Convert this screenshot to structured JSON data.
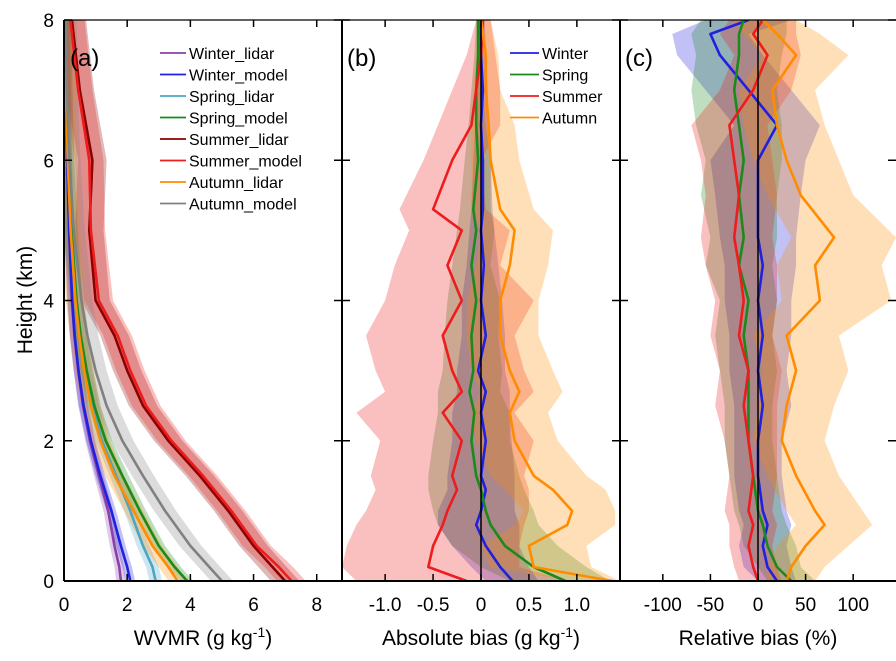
{
  "chart_data": [
    {
      "type": "line",
      "panel_label": "(a)",
      "xlabel": "WVMR (g kg",
      "xlabel_sup": "-1",
      "xlabel_tail": ")",
      "ylabel": "Height (km)",
      "xlim": [
        0,
        8.8
      ],
      "ylim": [
        0,
        8
      ],
      "xticks": [
        0,
        2,
        4,
        6,
        8
      ],
      "xtick_labels": [
        "0",
        "2",
        "4",
        "6",
        "8"
      ],
      "yticks": [
        0,
        2,
        4,
        6,
        8
      ],
      "ytick_labels": [
        "0",
        "2",
        "4",
        "6",
        "8"
      ],
      "legend_position": "top-right",
      "heights": [
        0,
        0.2,
        0.5,
        1,
        1.5,
        2,
        2.5,
        3,
        3.5,
        4,
        5,
        6,
        7,
        8
      ],
      "series": [
        {
          "name": "Winter_lidar",
          "color": "#8b3fa8",
          "x": [
            1.8,
            1.75,
            1.6,
            1.4,
            1.1,
            0.82,
            0.6,
            0.45,
            0.33,
            0.25,
            0.16,
            0.1,
            0.06,
            0.04
          ],
          "spread": 0.15
        },
        {
          "name": "Winter_model",
          "color": "#2020e0",
          "x": [
            2.1,
            2.0,
            1.8,
            1.5,
            1.15,
            0.85,
            0.62,
            0.46,
            0.34,
            0.26,
            0.16,
            0.1,
            0.06,
            0.04
          ],
          "spread": 0.15
        },
        {
          "name": "Spring_lidar",
          "color": "#4aa6c4",
          "x": [
            2.9,
            2.8,
            2.5,
            2.1,
            1.65,
            1.2,
            0.9,
            0.68,
            0.5,
            0.38,
            0.22,
            0.12,
            0.07,
            0.04
          ],
          "spread": 0.2
        },
        {
          "name": "Spring_model",
          "color": "#1a8a1a",
          "x": [
            3.9,
            3.5,
            3.0,
            2.4,
            1.85,
            1.32,
            0.96,
            0.72,
            0.53,
            0.4,
            0.23,
            0.13,
            0.07,
            0.04
          ],
          "spread": 0.2
        },
        {
          "name": "Summer_lidar",
          "color": "#8b0000",
          "x": [
            7.0,
            6.6,
            6.0,
            5.2,
            4.3,
            3.3,
            2.5,
            2.0,
            1.6,
            1.0,
            0.8,
            0.9,
            0.5,
            0.25
          ],
          "spread": 0.45
        },
        {
          "name": "Summer_model",
          "color": "#ee1c1c",
          "x": [
            7.2,
            6.8,
            6.1,
            5.3,
            4.4,
            3.4,
            2.6,
            2.1,
            1.7,
            1.1,
            0.85,
            0.8,
            0.45,
            0.2
          ],
          "spread": 0.45
        },
        {
          "name": "Autumn_lidar",
          "color": "#ff8c00",
          "x": [
            3.6,
            3.3,
            2.8,
            2.2,
            1.6,
            1.15,
            0.85,
            0.64,
            0.48,
            0.36,
            0.21,
            0.12,
            0.06,
            0.03
          ],
          "spread": 0.3
        },
        {
          "name": "Autumn_model",
          "color": "#808080",
          "x": [
            5.0,
            4.6,
            4.0,
            3.2,
            2.5,
            1.85,
            1.35,
            1.0,
            0.74,
            0.55,
            0.31,
            0.17,
            0.09,
            0.05
          ],
          "spread": 0.35
        }
      ]
    },
    {
      "type": "line",
      "panel_label": "(b)",
      "xlabel": "Absolute bias (g kg",
      "xlabel_sup": "-1",
      "xlabel_tail": ")",
      "xlim": [
        -1.45,
        1.45
      ],
      "ylim": [
        0,
        8
      ],
      "xticks": [
        -1.0,
        -0.5,
        0,
        0.5,
        1.0
      ],
      "xtick_labels": [
        "-1.0",
        "-0.5",
        "0",
        "0.5",
        "1.0"
      ],
      "zero_line": true,
      "legend_position": "top-right",
      "heights": [
        0,
        0.2,
        0.5,
        0.8,
        1,
        1.3,
        1.5,
        2,
        2.4,
        2.7,
        3,
        3.5,
        4,
        4.5,
        5,
        5.3,
        6,
        6.5,
        7,
        7.5,
        8
      ],
      "series": [
        {
          "name": "Winter",
          "color": "#2020e0",
          "x": [
            0.33,
            0.2,
            0.05,
            -0.05,
            0.0,
            0.05,
            0.0,
            0.05,
            0.0,
            0.05,
            -0.03,
            0.05,
            0.0,
            0.03,
            0.0,
            0.02,
            0.02,
            0.0,
            0.02,
            0.0,
            0.0
          ],
          "lo": [
            0.05,
            -0.1,
            -0.3,
            -0.45,
            -0.45,
            -0.35,
            -0.35,
            -0.3,
            -0.3,
            -0.25,
            -0.25,
            -0.2,
            -0.2,
            -0.15,
            -0.12,
            -0.1,
            -0.08,
            -0.06,
            -0.05,
            -0.04,
            -0.03
          ],
          "hi": [
            0.6,
            0.5,
            0.4,
            0.4,
            0.35,
            0.35,
            0.35,
            0.32,
            0.3,
            0.3,
            0.25,
            0.25,
            0.22,
            0.18,
            0.14,
            0.12,
            0.1,
            0.08,
            0.07,
            0.05,
            0.04
          ]
        },
        {
          "name": "Spring",
          "color": "#1a8a1a",
          "x": [
            0.88,
            0.55,
            0.25,
            0.1,
            0.05,
            0.0,
            -0.05,
            -0.1,
            -0.07,
            -0.12,
            -0.08,
            -0.1,
            -0.05,
            -0.1,
            -0.05,
            -0.08,
            -0.03,
            -0.05,
            -0.05,
            -0.03,
            -0.03
          ],
          "lo": [
            0.3,
            0.0,
            -0.3,
            -0.45,
            -0.5,
            -0.55,
            -0.55,
            -0.5,
            -0.45,
            -0.45,
            -0.4,
            -0.38,
            -0.35,
            -0.3,
            -0.25,
            -0.22,
            -0.17,
            -0.13,
            -0.1,
            -0.07,
            -0.05
          ],
          "hi": [
            1.35,
            1.1,
            0.8,
            0.6,
            0.55,
            0.45,
            0.4,
            0.3,
            0.3,
            0.2,
            0.22,
            0.18,
            0.2,
            0.1,
            0.14,
            0.1,
            0.1,
            0.05,
            0.02,
            0.02,
            0.0
          ]
        },
        {
          "name": "Summer",
          "color": "#ee1c1c",
          "x": [
            -0.15,
            -0.55,
            -0.5,
            -0.4,
            -0.35,
            -0.25,
            -0.3,
            -0.2,
            -0.4,
            -0.2,
            -0.3,
            -0.4,
            -0.2,
            -0.35,
            -0.2,
            -0.5,
            -0.3,
            -0.1,
            -0.05,
            0.0,
            0.02
          ],
          "lo": [
            -1.3,
            -1.45,
            -1.4,
            -1.3,
            -1.2,
            -1.1,
            -1.15,
            -1.05,
            -1.3,
            -1.0,
            -1.1,
            -1.2,
            -1.0,
            -0.9,
            -0.75,
            -0.85,
            -0.6,
            -0.45,
            -0.3,
            -0.15,
            -0.05
          ],
          "hi": [
            0.9,
            0.4,
            0.4,
            0.45,
            0.5,
            0.5,
            0.45,
            0.55,
            0.35,
            0.55,
            0.45,
            0.35,
            0.55,
            0.2,
            0.3,
            0.05,
            0.0,
            0.2,
            0.2,
            0.15,
            0.1
          ]
        },
        {
          "name": "Autumn",
          "color": "#ff8c00",
          "x": [
            1.37,
            0.55,
            0.5,
            0.9,
            0.95,
            0.75,
            0.55,
            0.35,
            0.3,
            0.4,
            0.3,
            0.2,
            0.2,
            0.3,
            0.35,
            0.2,
            0.1,
            0.08,
            0.05,
            0.05,
            0.0
          ],
          "lo": [
            0.95,
            0.1,
            0.0,
            0.35,
            0.45,
            0.25,
            0.1,
            -0.05,
            -0.1,
            0.0,
            -0.1,
            -0.15,
            -0.15,
            -0.05,
            0.0,
            -0.1,
            -0.1,
            -0.1,
            -0.08,
            -0.05,
            -0.03
          ],
          "hi": [
            1.45,
            1.15,
            1.1,
            1.4,
            1.4,
            1.3,
            1.1,
            0.8,
            0.7,
            0.85,
            0.75,
            0.6,
            0.6,
            0.7,
            0.75,
            0.55,
            0.4,
            0.35,
            0.2,
            0.18,
            0.1
          ]
        }
      ]
    },
    {
      "type": "line",
      "panel_label": "(c)",
      "xlabel": "Relative bias (%)",
      "xlim": [
        -145,
        145
      ],
      "ylim": [
        0,
        8
      ],
      "xticks": [
        -100,
        -50,
        0,
        50,
        100
      ],
      "xtick_labels": [
        "-100",
        "-50",
        "0",
        "50",
        "100"
      ],
      "zero_line": true,
      "heights": [
        0,
        0.2,
        0.5,
        0.8,
        1,
        1.5,
        2,
        2.5,
        3,
        3.5,
        4,
        4.5,
        4.9,
        5.5,
        6,
        6.5,
        7,
        7.5,
        7.8,
        8
      ],
      "series": [
        {
          "name": "Winter",
          "color": "#2020e0",
          "x": [
            20,
            10,
            5,
            10,
            5,
            0,
            0,
            5,
            0,
            5,
            0,
            5,
            0,
            0,
            0,
            20,
            -10,
            -40,
            -50,
            -10
          ],
          "lo": [
            0,
            -15,
            -20,
            -15,
            -20,
            -25,
            -25,
            -25,
            -30,
            -30,
            -35,
            -35,
            -40,
            -45,
            -50,
            -25,
            -55,
            -85,
            -90,
            -55
          ],
          "hi": [
            40,
            35,
            30,
            35,
            30,
            25,
            25,
            35,
            30,
            35,
            35,
            40,
            40,
            45,
            50,
            65,
            35,
            5,
            -10,
            35
          ]
        },
        {
          "name": "Spring",
          "color": "#1a8a1a",
          "x": [
            35,
            20,
            10,
            5,
            0,
            -5,
            -10,
            -10,
            -10,
            -15,
            -10,
            -20,
            -15,
            -20,
            -15,
            -20,
            -25,
            -20,
            -20,
            -15
          ],
          "lo": [
            10,
            0,
            -15,
            -20,
            -25,
            -30,
            -35,
            -35,
            -40,
            -45,
            -40,
            -55,
            -50,
            -60,
            -55,
            -65,
            -70,
            -65,
            -70,
            -60
          ],
          "hi": [
            60,
            45,
            40,
            30,
            25,
            20,
            15,
            15,
            20,
            15,
            20,
            15,
            20,
            20,
            25,
            25,
            20,
            25,
            30,
            30
          ]
        },
        {
          "name": "Summer",
          "color": "#ee1c1c",
          "x": [
            0,
            -5,
            -10,
            -5,
            -10,
            -5,
            -10,
            -15,
            -10,
            -20,
            -15,
            -20,
            -25,
            -20,
            -25,
            -30,
            -5,
            10,
            -5,
            5
          ],
          "lo": [
            -20,
            -25,
            -30,
            -30,
            -35,
            -30,
            -35,
            -45,
            -40,
            -50,
            -45,
            -55,
            -60,
            -55,
            -60,
            -70,
            -40,
            -25,
            -40,
            -30
          ],
          "hi": [
            25,
            20,
            15,
            20,
            15,
            20,
            20,
            20,
            25,
            15,
            20,
            20,
            15,
            20,
            15,
            10,
            35,
            45,
            40,
            40
          ]
        },
        {
          "name": "Autumn",
          "color": "#ff8c00",
          "x": [
            30,
            35,
            50,
            70,
            60,
            40,
            25,
            30,
            40,
            30,
            65,
            60,
            80,
            45,
            30,
            20,
            15,
            40,
            20,
            5
          ],
          "lo": [
            10,
            10,
            20,
            40,
            30,
            10,
            -5,
            0,
            5,
            -5,
            25,
            20,
            35,
            10,
            -5,
            -15,
            -20,
            5,
            -15,
            -25
          ],
          "hi": [
            60,
            70,
            95,
            120,
            110,
            85,
            70,
            80,
            95,
            85,
            140,
            130,
            145,
            100,
            85,
            70,
            60,
            95,
            65,
            40
          ]
        }
      ]
    }
  ]
}
